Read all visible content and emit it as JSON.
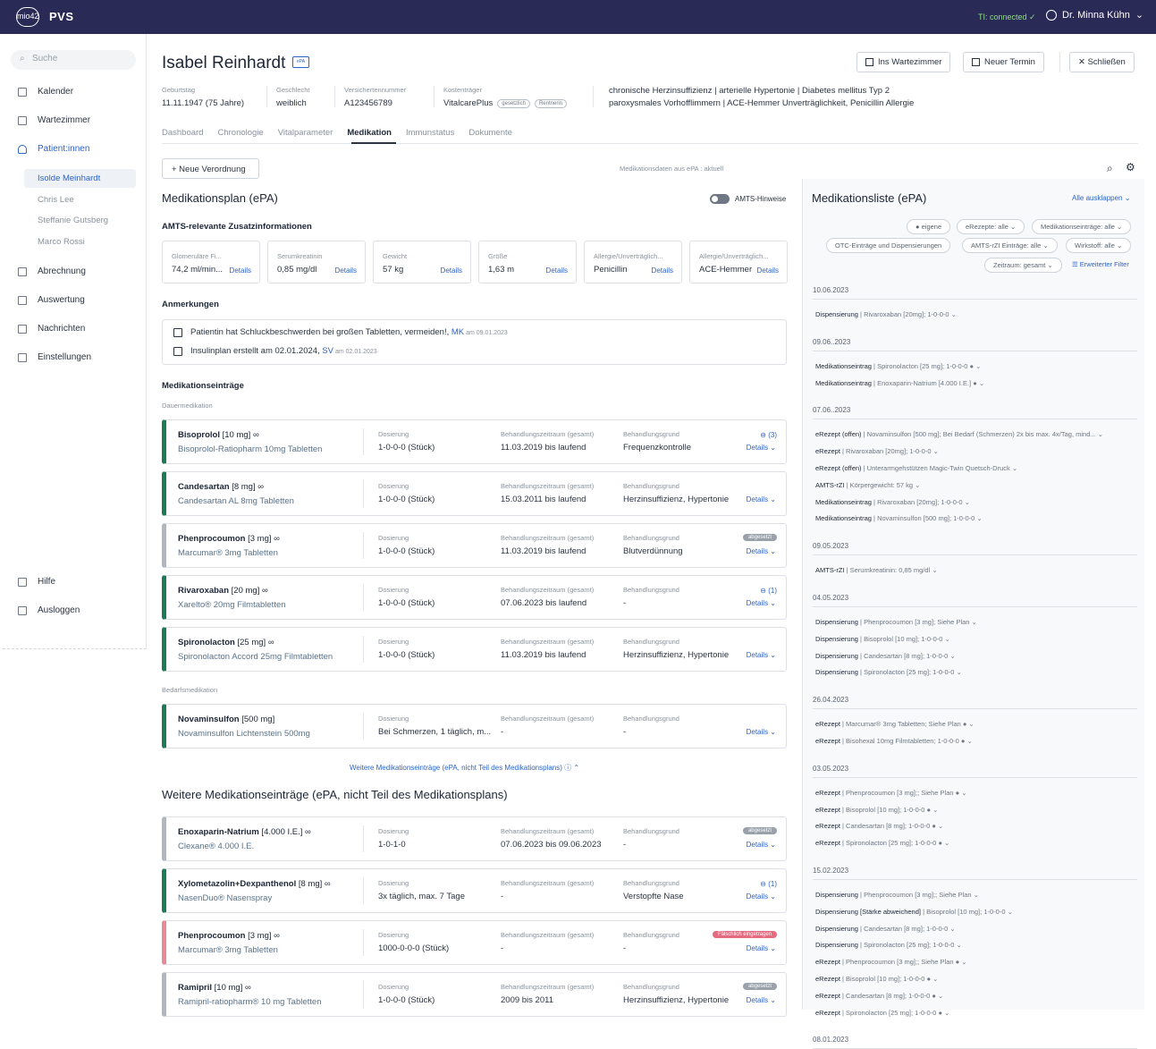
{
  "app": {
    "title": "PVS",
    "logo": "mio42",
    "ti_status": "TI: connected ✓",
    "user": "Dr. Minna Kühn"
  },
  "sidebar": {
    "search_placeholder": "Suche",
    "items": [
      "Kalender",
      "Wartezimmer",
      "Patient:innen",
      "Abrechnung",
      "Auswertung",
      "Nachrichten",
      "Einstellungen"
    ],
    "patients": [
      "Isolde Meinhardt",
      "Chris Lee",
      "Steffanie Gutsberg",
      "Marco Rossi"
    ],
    "bottom": [
      "Hilfe",
      "Ausloggen"
    ]
  },
  "patient": {
    "name": "Isabel Reinhardt",
    "epa": "ePA",
    "birth_label": "Geburtstag",
    "birth": "11.11.1947 (75 Jahre)",
    "sex_label": "Geschlecht",
    "sex": "weiblich",
    "ins_label": "Versichertennummer",
    "ins": "A123456789",
    "payer_label": "Kostenträger",
    "payer": "VitalcarePlus",
    "pill1": "gesetzlich",
    "pill2": "Rentnerin",
    "diag1": "chronische Herzinsuffizienz  |  arterielle Hypertonie  |  Diabetes mellitus Typ 2",
    "diag2": "paroxysmales Vorhofflimmern  |  ACE-Hemmer Unverträglichkeit, Penicillin Allergie"
  },
  "actions": {
    "wait": "Ins Wartezimmer",
    "appt": "Neuer Termin",
    "close": "✕  Schließen"
  },
  "tabs": [
    "Dashboard",
    "Chronologie",
    "Vitalparameter",
    "Medikation",
    "Immunstatus",
    "Dokumente"
  ],
  "toolbar": {
    "new": "+  Neue Verordnung",
    "src": "Medikationsdaten aus  ePA  : aktuell"
  },
  "plan": {
    "title": "Medikationsplan (ePA)",
    "amts_toggle": "AMTS-Hinweise",
    "amts_title": "AMTS-relevante Zusatzinformationen",
    "amts": [
      {
        "l": "Glomeruläre Fi...",
        "v": "74,2 ml/min...",
        "d": "Details"
      },
      {
        "l": "Serumkreatinin",
        "v": "0,85 mg/dl",
        "d": "Details"
      },
      {
        "l": "Gewicht",
        "v": "57 kg",
        "d": "Details"
      },
      {
        "l": "Größe",
        "v": "1,63 m",
        "d": "Details"
      },
      {
        "l": "Allergie/Unverträglich...",
        "v": "Penicillin",
        "d": "Details"
      },
      {
        "l": "Allergie/Unverträglich...",
        "v": "ACE-Hemmer",
        "d": "Details"
      }
    ],
    "notes_title": "Anmerkungen",
    "notes": [
      {
        "t": "Patientin hat Schluckbeschwerden bei großen Tabletten, vermeiden!,",
        "w": "MK",
        "d": "am 09.01.2023"
      },
      {
        "t": "Insulinplan erstellt am 02.01.2024,",
        "w": "SV",
        "d": "am 02.01.2023"
      }
    ],
    "entries_title": "Medikationseinträge",
    "dauer": "Dauermedikation",
    "bedarf": "Bedarfsmedikation",
    "more": "Weitere Medikationseinträge (ePA, nicht Teil des Medikationsplans)  ⓘ  ⌃",
    "further_title": "Weitere Medikationseinträge (ePA, nicht Teil des Medikationsplans)"
  },
  "labels": {
    "dose": "Dosierung",
    "period": "Behandlungszeitraum (gesamt)",
    "reason": "Behandlungsgrund",
    "details": "Details ⌄"
  },
  "meds": [
    {
      "name": "Bisoprolol",
      "str": "[10 mg]  ∞",
      "sub": "Bisoprolol-Ratiopharm 10mg Tabletten",
      "dose": "1-0-0-0 (Stück)",
      "period": "11.03.2019 bis laufend",
      "reason": "Frequenzkontrolle",
      "extra": "⊖ (3)",
      "color": "#1f7a57"
    },
    {
      "name": "Candesartan",
      "str": "[8 mg]  ∞",
      "sub": "Candesartan AL 8mg Tabletten",
      "dose": "1-0-0-0 (Stück)",
      "period": "15.03.2011 bis laufend",
      "reason": "Herzinsuffizienz, Hypertonie",
      "extra": "",
      "color": "#1f7a57"
    },
    {
      "name": "Phenprocoumon",
      "str": "[3 mg]  ∞",
      "sub": "Marcumar® 3mg Tabletten",
      "dose": "1-0-0-0 (Stück)",
      "period": "11.03.2019 bis laufend",
      "reason": "Blutverdünnung",
      "badge": "abgesetzt",
      "color": "#b0b6be"
    },
    {
      "name": "Rivaroxaban",
      "str": "[20 mg]  ∞",
      "sub": "Xarelto® 20mg Filmtabletten",
      "dose": "1-0-0-0 (Stück)",
      "period": "07.06.2023 bis laufend",
      "reason": "-",
      "extra": "⊖ (1)",
      "color": "#1f7a57"
    },
    {
      "name": "Spironolacton",
      "str": "[25 mg]  ∞",
      "sub": "Spironolacton Accord 25mg Filmtabletten",
      "dose": "1-0-0-0 (Stück)",
      "period": "11.03.2019 bis laufend",
      "reason": "Herzinsuffizienz, Hypertonie",
      "extra": "",
      "color": "#1f7a57"
    }
  ],
  "bedarf_meds": [
    {
      "name": "Novaminsulfon",
      "str": "[500 mg]",
      "sub": "Novaminsulfon Lichtenstein 500mg",
      "dose": "Bei Schmerzen, 1 täglich, m...",
      "period": "-",
      "reason": "-",
      "color": "#1f7a57"
    }
  ],
  "other_meds": [
    {
      "name": "Enoxaparin-Natrium",
      "str": "[4.000 I.E.]  ∞",
      "sub": "Clexane® 4.000 I.E.",
      "dose": "1-0-1-0",
      "period": "07.06.2023 bis 09.06.2023",
      "reason": "-",
      "badge": "abgesetzt",
      "color": "#b0b6be"
    },
    {
      "name": "Xylometazolin+Dexpanthenol",
      "str": "[8 mg]  ∞",
      "sub": "NasenDuo® Nasenspray",
      "dose": "3x täglich, max. 7 Tage",
      "period": "-",
      "reason": "Verstopfte Nase",
      "extra": "⊖ (1)",
      "color": "#1f7a57"
    },
    {
      "name": "Phenprocoumon",
      "str": "[3 mg]  ∞",
      "sub": "Marcumar® 3mg Tabletten",
      "dose": "1000-0-0-0 (Stück)",
      "period": "-",
      "reason": "-",
      "badge": "Fälschlich eingetragen",
      "color": "#e88a98",
      "badgecolor": "#e46b80"
    },
    {
      "name": "Ramipril",
      "str": "[10 mg]  ∞",
      "sub": "Ramipril-ratiopharm® 10 mg Tabletten",
      "dose": "1-0-0-0 (Stück)",
      "period": "2009 bis 2011",
      "reason": "Herzinsuffizienz, Hypertonie",
      "badge": "abgesetzt",
      "color": "#b0b6be"
    }
  ],
  "list": {
    "title": "Medikationsliste (ePA)",
    "expand": "Alle ausklappen  ⌄",
    "filters": [
      "●  eigene",
      "eRezepte: alle  ⌄",
      "Medikationseinträge: alle  ⌄",
      "OTC-Einträge und Dispensierungen",
      "AMTS-rZI Einträge: alle  ⌄",
      "Wirkstoff: alle  ⌄",
      "Zeitraum: gesamt  ⌄",
      "☰  Erweiterter Filter"
    ],
    "groups": [
      {
        "date": "10.06.2023",
        "items": [
          [
            "Dispensierung",
            "Rivaroxaban [20mg]; 1-0-0-0  ⌄"
          ]
        ]
      },
      {
        "date": "09.06..2023",
        "items": [
          [
            "Medikationseintrag",
            "Spironolacton [25 mg]; 1-0-0-0  ●  ⌄"
          ],
          [
            "Medikationseintrag",
            "Enoxaparin-Natrium [4.000 I.E.]  ●  ⌄"
          ]
        ]
      },
      {
        "date": "07.06..2023",
        "items": [
          [
            "eRezept (offen)",
            "Novaminsulfon [500 mg]; Bei Bedarf (Schmerzen) 2x bis max. 4x/Tag, mind...  ⌄"
          ],
          [
            "eRezept",
            "Rivaroxaban [20mg]; 1-0-0-0  ⌄"
          ],
          [
            "eRezept (offen)",
            "Unterarmgehstützen Magic-Twin Quetsch-Druck  ⌄"
          ],
          [
            "AMTS-rZI",
            "Körpergewicht: 57 kg  ⌄"
          ],
          [
            "Medikationseintrag",
            "Rivaroxaban [20mg]; 1-0-0-0  ⌄"
          ],
          [
            "Medikationseintrag",
            "Novaminsulfon [500 mg]; 1-0-0-0  ⌄"
          ]
        ]
      },
      {
        "date": "09.05.2023",
        "items": [
          [
            "AMTS-rZI",
            "Serumkreatinin: 0,85 mg/dl  ⌄"
          ]
        ]
      },
      {
        "date": "04.05.2023",
        "items": [
          [
            "Dispensierung",
            "Phenprocoumon [3 mg]; Siehe Plan  ⌄"
          ],
          [
            "Dispensierung",
            "Bisoprolol [10 mg]; 1-0-0-0  ⌄"
          ],
          [
            "Dispensierung",
            "Candesartan [8 mg]; 1-0-0-0  ⌄"
          ],
          [
            "Dispensierung",
            "Spironolacton [25 mg]; 1-0-0-0  ⌄"
          ]
        ]
      },
      {
        "date": "26.04.2023",
        "items": [
          [
            "eRezept",
            "Marcumar® 3mg Tabletten; Siehe Plan  ●  ⌄"
          ],
          [
            "eRezept",
            "Bisohexal 10mg Filmtabletten; 1-0-0-0  ●  ⌄"
          ]
        ]
      },
      {
        "date": "03.05.2023",
        "items": [
          [
            "eRezept",
            "Phenprocoumon [3 mg];; Siehe Plan  ●  ⌄"
          ],
          [
            "eRezept",
            "Bisoprolol [10 mg]; 1-0-0-0  ●  ⌄"
          ],
          [
            "eRezept",
            "Candesartan [8 mg]; 1-0-0-0  ●  ⌄"
          ],
          [
            "eRezept",
            "Spironolacton [25 mg]; 1-0-0-0  ●  ⌄"
          ]
        ]
      },
      {
        "date": "15.02.2023",
        "items": [
          [
            "Dispensierung",
            "Phenprocoumon [3 mg];; Siehe Plan  ⌄"
          ],
          [
            "Dispensierung [Stärke abweichend]",
            "Bisoprolol [10 mg]; 1-0-0-0  ⌄"
          ],
          [
            "Dispensierung",
            "Candesartan [8 mg]; 1-0-0-0  ⌄"
          ],
          [
            "Dispensierung",
            "Spironolacton [25 mg]; 1-0-0-0  ⌄"
          ],
          [
            "eRezept",
            "Phenprocoumon [3 mg];; Siehe Plan  ●  ⌄"
          ],
          [
            "eRezept",
            "Bisoprolol [10 mg]; 1-0-0-0  ●  ⌄"
          ],
          [
            "eRezept",
            "Candesartan [8 mg]; 1-0-0-0  ●  ⌄"
          ],
          [
            "eRezept",
            "Spironolacton [25 mg]; 1-0-0-0  ●  ⌄"
          ]
        ]
      },
      {
        "date": "08.01.2023",
        "items": []
      }
    ]
  }
}
